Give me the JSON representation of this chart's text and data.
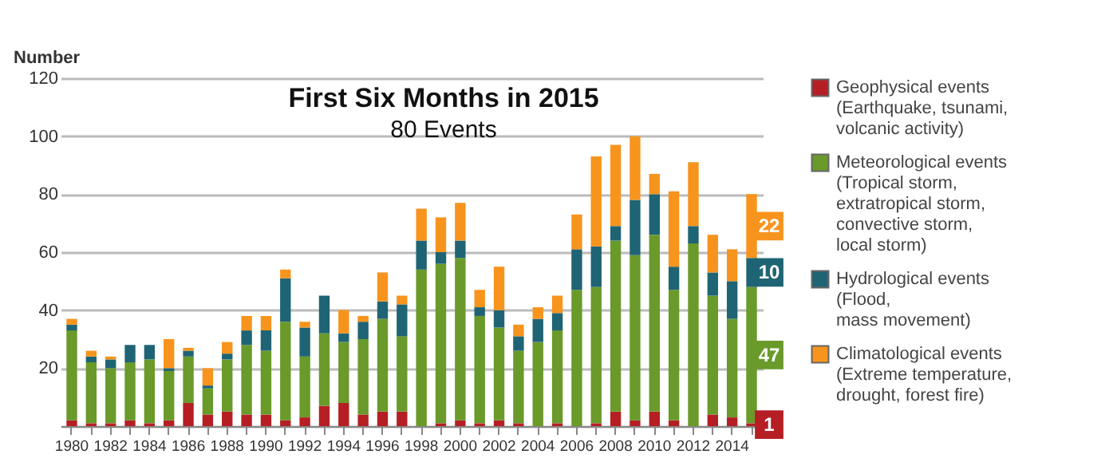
{
  "chart_data": {
    "type": "bar",
    "stacked": true,
    "title": "First Six Months in 2015",
    "subtitle": "80 Events",
    "ylabel": "Number",
    "categories": [
      "1980",
      null,
      "1982",
      null,
      "1984",
      null,
      "1986",
      null,
      "1988",
      null,
      "1990",
      null,
      "1992",
      null,
      "1994",
      null,
      "1996",
      null,
      "1998",
      null,
      "2000",
      null,
      "2002",
      null,
      "2004",
      null,
      "2006",
      null,
      "2008",
      null,
      "2010",
      null,
      "2012",
      null,
      "2014",
      null
    ],
    "series": [
      {
        "name": "Geophysical events\n(Earthquake, tsunami,\nvolcanic activity)",
        "color": "#b51f24",
        "values": [
          2,
          1,
          1,
          2,
          1,
          2,
          8,
          4,
          5,
          4,
          4,
          2,
          3,
          7,
          8,
          4,
          5,
          5,
          0,
          1,
          2,
          1,
          2,
          1,
          0,
          1,
          0,
          1,
          5,
          2,
          5,
          2,
          0,
          4,
          3,
          1
        ],
        "value_labels": [
          null,
          null,
          null,
          null,
          null,
          null,
          null,
          null,
          null,
          null,
          null,
          null,
          null,
          null,
          null,
          null,
          null,
          null,
          null,
          null,
          null,
          null,
          null,
          null,
          null,
          null,
          null,
          null,
          null,
          null,
          null,
          null,
          null,
          null,
          null,
          "1"
        ]
      },
      {
        "name": "Meteorological events\n(Tropical storm,\nextratropical storm,\nconvective storm,\nlocal storm)",
        "color": "#6a9a2a",
        "values": [
          31,
          21,
          19,
          20,
          22,
          17,
          16,
          9,
          18,
          24,
          22,
          34,
          21,
          25,
          21,
          26,
          32,
          26,
          54,
          55,
          56,
          37,
          32,
          25,
          29,
          32,
          47,
          47,
          59,
          57,
          61,
          45,
          63,
          41,
          34,
          47
        ],
        "value_labels": [
          null,
          null,
          null,
          null,
          null,
          null,
          null,
          null,
          null,
          null,
          null,
          null,
          null,
          null,
          null,
          null,
          null,
          null,
          null,
          null,
          null,
          null,
          null,
          null,
          null,
          null,
          null,
          null,
          null,
          null,
          null,
          null,
          null,
          null,
          null,
          "47"
        ]
      },
      {
        "name": "Hydrological events\n(Flood,\nmass movement)",
        "color": "#1f6474",
        "values": [
          2,
          2,
          3,
          6,
          5,
          1,
          2,
          1,
          2,
          5,
          7,
          15,
          10,
          13,
          3,
          6,
          6,
          11,
          10,
          4,
          6,
          3,
          6,
          5,
          8,
          6,
          14,
          14,
          5,
          19,
          14,
          8,
          6,
          8,
          13,
          10
        ],
        "value_labels": [
          null,
          null,
          null,
          null,
          null,
          null,
          null,
          null,
          null,
          null,
          null,
          null,
          null,
          null,
          null,
          null,
          null,
          null,
          null,
          null,
          null,
          null,
          null,
          null,
          null,
          null,
          null,
          null,
          null,
          null,
          null,
          null,
          null,
          null,
          null,
          "10"
        ]
      },
      {
        "name": "Climatological events\n(Extreme temperature,\ndrought, forest fire)",
        "color": "#f7941d",
        "values": [
          2,
          2,
          1,
          0,
          0,
          10,
          1,
          6,
          4,
          5,
          5,
          3,
          2,
          0,
          8,
          2,
          10,
          3,
          11,
          12,
          13,
          6,
          15,
          4,
          4,
          6,
          12,
          31,
          28,
          22,
          7,
          26,
          22,
          13,
          11,
          22
        ],
        "value_labels": [
          null,
          null,
          null,
          null,
          null,
          null,
          null,
          null,
          null,
          null,
          null,
          null,
          null,
          null,
          null,
          null,
          null,
          null,
          null,
          null,
          null,
          null,
          null,
          null,
          null,
          null,
          null,
          null,
          null,
          null,
          null,
          null,
          null,
          null,
          null,
          "22"
        ]
      }
    ],
    "ylim": [
      0,
      120
    ],
    "yticks": [
      {
        "value": 0,
        "label": null
      },
      20,
      40,
      60,
      80,
      100,
      120
    ],
    "grid": "y",
    "legend": "right"
  }
}
